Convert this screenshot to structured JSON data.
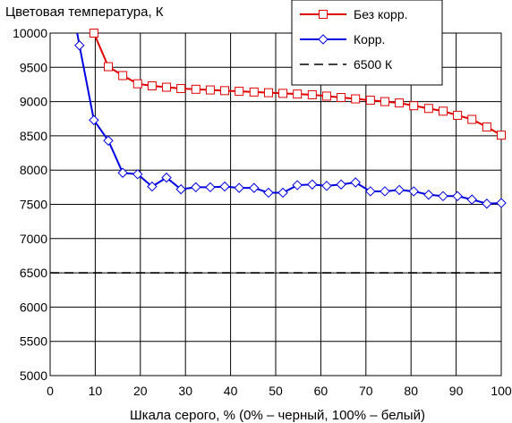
{
  "chart_data": {
    "type": "line",
    "title": "",
    "ylabel": "Цветовая температура, К",
    "xlabel": "Шкала серого, % (0% – черный, 100% – белый)",
    "xlim": [
      0,
      100
    ],
    "ylim": [
      5000,
      10000
    ],
    "x_ticks": [
      0,
      10,
      20,
      30,
      40,
      50,
      60,
      70,
      80,
      90,
      100
    ],
    "y_ticks": [
      5000,
      5500,
      6000,
      6500,
      7000,
      7500,
      8000,
      8500,
      9000,
      9500,
      10000
    ],
    "grid": true,
    "legend_position": "top-right",
    "series": [
      {
        "name": "Без корр.",
        "color": "#e00000",
        "marker": "square",
        "x": [
          9.7,
          12.9,
          16.1,
          19.4,
          22.6,
          25.8,
          29.0,
          32.3,
          35.5,
          38.7,
          41.9,
          45.2,
          48.4,
          51.6,
          54.8,
          58.1,
          61.3,
          64.5,
          67.7,
          71.0,
          74.2,
          77.4,
          80.6,
          83.9,
          87.1,
          90.3,
          93.5,
          96.8,
          100
        ],
        "y": [
          10000,
          9510,
          9380,
          9260,
          9230,
          9210,
          9190,
          9180,
          9170,
          9160,
          9150,
          9140,
          9130,
          9120,
          9110,
          9100,
          9080,
          9060,
          9040,
          9020,
          9000,
          8980,
          8940,
          8900,
          8860,
          8800,
          8740,
          8630,
          8510
        ]
      },
      {
        "name": "Корр.",
        "color": "#0000e0",
        "marker": "diamond",
        "x_line": [
          6.0,
          6.5,
          9.7,
          12.9,
          16.1,
          19.4,
          22.6,
          25.8,
          29.0,
          32.3,
          35.5,
          38.7,
          41.9,
          45.2,
          48.4,
          51.6,
          54.8,
          58.1,
          61.3,
          64.5,
          67.7,
          71.0,
          74.2,
          77.4,
          80.6,
          83.9,
          87.1,
          90.3,
          93.5,
          96.8,
          100
        ],
        "y_line": [
          10000,
          9820,
          8730,
          8430,
          7960,
          7940,
          7760,
          7890,
          7720,
          7750,
          7750,
          7760,
          7740,
          7740,
          7670,
          7670,
          7780,
          7790,
          7770,
          7790,
          7820,
          7690,
          7690,
          7710,
          7690,
          7640,
          7620,
          7620,
          7570,
          7510,
          7520
        ],
        "x": [
          6.5,
          9.7,
          12.9,
          16.1,
          19.4,
          22.6,
          25.8,
          29.0,
          32.3,
          35.5,
          38.7,
          41.9,
          45.2,
          48.4,
          51.6,
          54.8,
          58.1,
          61.3,
          64.5,
          67.7,
          71.0,
          74.2,
          77.4,
          80.6,
          83.9,
          87.1,
          90.3,
          93.5,
          96.8,
          100
        ],
        "y": [
          9820,
          8730,
          8430,
          7960,
          7940,
          7760,
          7890,
          7720,
          7750,
          7750,
          7760,
          7740,
          7740,
          7670,
          7670,
          7780,
          7790,
          7770,
          7790,
          7820,
          7690,
          7690,
          7710,
          7690,
          7640,
          7620,
          7620,
          7570,
          7510,
          7520
        ]
      },
      {
        "name": "6500 К",
        "color": "#000000",
        "marker": "none",
        "dashed": true,
        "x": [
          0,
          100
        ],
        "y": [
          6500,
          6500
        ]
      }
    ]
  }
}
